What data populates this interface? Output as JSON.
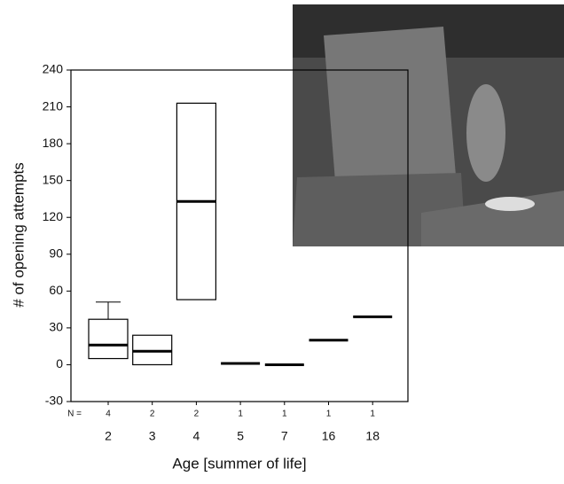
{
  "chart_data": {
    "type": "box",
    "y_label": "# of opening attempts",
    "x_label": "Age [summer of life]",
    "n_label": "N =",
    "categories": [
      "2",
      "3",
      "4",
      "5",
      "7",
      "16",
      "18"
    ],
    "n": [
      4,
      2,
      2,
      1,
      1,
      1,
      1
    ],
    "q1": [
      5,
      0,
      53,
      null,
      null,
      null,
      null
    ],
    "median": [
      16,
      11,
      133,
      1,
      0,
      20,
      39
    ],
    "q3": [
      37,
      24,
      213,
      null,
      null,
      null,
      null
    ],
    "whisker_high": [
      51,
      null,
      null,
      null,
      null,
      null,
      null
    ],
    "ylim": [
      -30,
      240
    ],
    "yticks": [
      -30,
      0,
      30,
      60,
      90,
      120,
      150,
      180,
      210,
      240
    ],
    "color": "#000000"
  }
}
